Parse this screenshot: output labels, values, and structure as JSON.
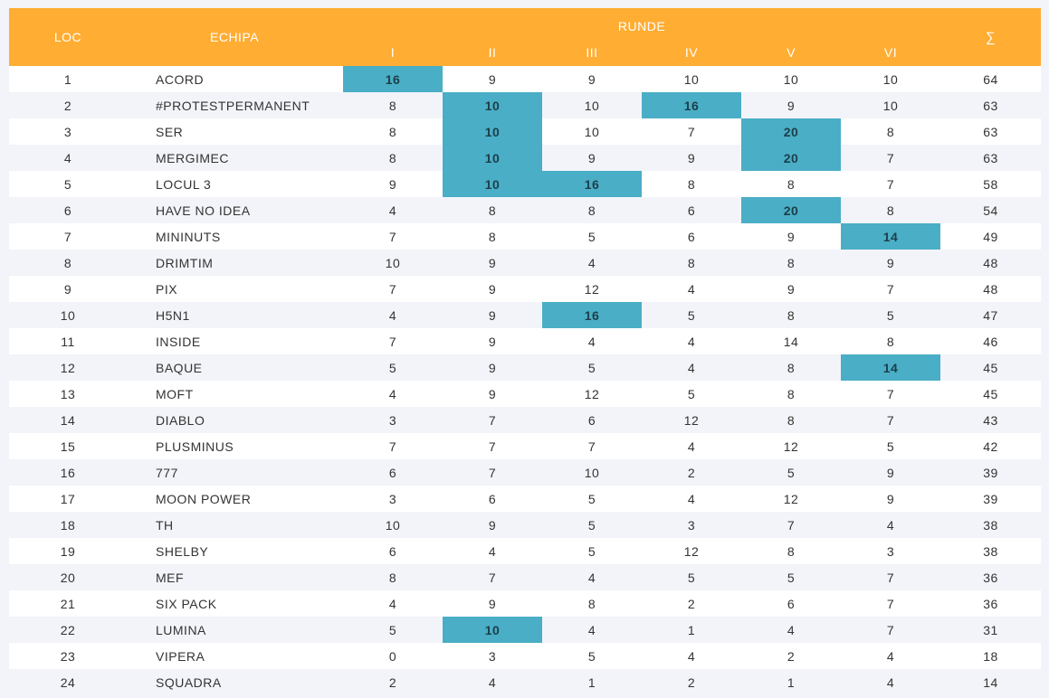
{
  "header": {
    "loc": "LOC",
    "team": "ECHIPA",
    "rounds_group": "RUNDE",
    "rounds": [
      "I",
      "II",
      "III",
      "IV",
      "V",
      "VI"
    ],
    "sum": "∑"
  },
  "colors": {
    "header_bg": "#ffad33",
    "highlight": "#4aaec6",
    "row_alt": "#f3f4f9"
  },
  "rows": [
    {
      "loc": "1",
      "team": "ACORD",
      "r": [
        "16",
        "9",
        "9",
        "10",
        "10",
        "10"
      ],
      "sum": "64",
      "hl": [
        0
      ]
    },
    {
      "loc": "2",
      "team": "#PROTESTPERMANENT",
      "r": [
        "8",
        "10",
        "10",
        "16",
        "9",
        "10"
      ],
      "sum": "63",
      "hl": [
        1,
        3
      ]
    },
    {
      "loc": "3",
      "team": "SER",
      "r": [
        "8",
        "10",
        "10",
        "7",
        "20",
        "8"
      ],
      "sum": "63",
      "hl": [
        1,
        4
      ]
    },
    {
      "loc": "4",
      "team": "MERGIMEC",
      "r": [
        "8",
        "10",
        "9",
        "9",
        "20",
        "7"
      ],
      "sum": "63",
      "hl": [
        1,
        4
      ]
    },
    {
      "loc": "5",
      "team": "LOCUL 3",
      "r": [
        "9",
        "10",
        "16",
        "8",
        "8",
        "7"
      ],
      "sum": "58",
      "hl": [
        1,
        2
      ]
    },
    {
      "loc": "6",
      "team": "HAVE NO IDEA",
      "r": [
        "4",
        "8",
        "8",
        "6",
        "20",
        "8"
      ],
      "sum": "54",
      "hl": [
        4
      ]
    },
    {
      "loc": "7",
      "team": "MININUTS",
      "r": [
        "7",
        "8",
        "5",
        "6",
        "9",
        "14"
      ],
      "sum": "49",
      "hl": [
        5
      ]
    },
    {
      "loc": "8",
      "team": "DRIMTIM",
      "r": [
        "10",
        "9",
        "4",
        "8",
        "8",
        "9"
      ],
      "sum": "48",
      "hl": []
    },
    {
      "loc": "9",
      "team": "PIX",
      "r": [
        "7",
        "9",
        "12",
        "4",
        "9",
        "7"
      ],
      "sum": "48",
      "hl": []
    },
    {
      "loc": "10",
      "team": "H5N1",
      "r": [
        "4",
        "9",
        "16",
        "5",
        "8",
        "5"
      ],
      "sum": "47",
      "hl": [
        2
      ]
    },
    {
      "loc": "11",
      "team": "INSIDE",
      "r": [
        "7",
        "9",
        "4",
        "4",
        "14",
        "8"
      ],
      "sum": "46",
      "hl": []
    },
    {
      "loc": "12",
      "team": "BAQUE",
      "r": [
        "5",
        "9",
        "5",
        "4",
        "8",
        "14"
      ],
      "sum": "45",
      "hl": [
        5
      ]
    },
    {
      "loc": "13",
      "team": "MOFT",
      "r": [
        "4",
        "9",
        "12",
        "5",
        "8",
        "7"
      ],
      "sum": "45",
      "hl": []
    },
    {
      "loc": "14",
      "team": "DIABLO",
      "r": [
        "3",
        "7",
        "6",
        "12",
        "8",
        "7"
      ],
      "sum": "43",
      "hl": []
    },
    {
      "loc": "15",
      "team": "PLUSMINUS",
      "r": [
        "7",
        "7",
        "7",
        "4",
        "12",
        "5"
      ],
      "sum": "42",
      "hl": []
    },
    {
      "loc": "16",
      "team": "777",
      "r": [
        "6",
        "7",
        "10",
        "2",
        "5",
        "9"
      ],
      "sum": "39",
      "hl": []
    },
    {
      "loc": "17",
      "team": "MOON POWER",
      "r": [
        "3",
        "6",
        "5",
        "4",
        "12",
        "9"
      ],
      "sum": "39",
      "hl": []
    },
    {
      "loc": "18",
      "team": "TH",
      "r": [
        "10",
        "9",
        "5",
        "3",
        "7",
        "4"
      ],
      "sum": "38",
      "hl": []
    },
    {
      "loc": "19",
      "team": "SHELBY",
      "r": [
        "6",
        "4",
        "5",
        "12",
        "8",
        "3"
      ],
      "sum": "38",
      "hl": []
    },
    {
      "loc": "20",
      "team": "MEF",
      "r": [
        "8",
        "7",
        "4",
        "5",
        "5",
        "7"
      ],
      "sum": "36",
      "hl": []
    },
    {
      "loc": "21",
      "team": "SIX PACK",
      "r": [
        "4",
        "9",
        "8",
        "2",
        "6",
        "7"
      ],
      "sum": "36",
      "hl": []
    },
    {
      "loc": "22",
      "team": "LUMINA",
      "r": [
        "5",
        "10",
        "4",
        "1",
        "4",
        "7"
      ],
      "sum": "31",
      "hl": [
        1
      ]
    },
    {
      "loc": "23",
      "team": "VIPERA",
      "r": [
        "0",
        "3",
        "5",
        "4",
        "2",
        "4"
      ],
      "sum": "18",
      "hl": []
    },
    {
      "loc": "24",
      "team": "SQUADRA",
      "r": [
        "2",
        "4",
        "1",
        "2",
        "1",
        "4"
      ],
      "sum": "14",
      "hl": []
    }
  ]
}
